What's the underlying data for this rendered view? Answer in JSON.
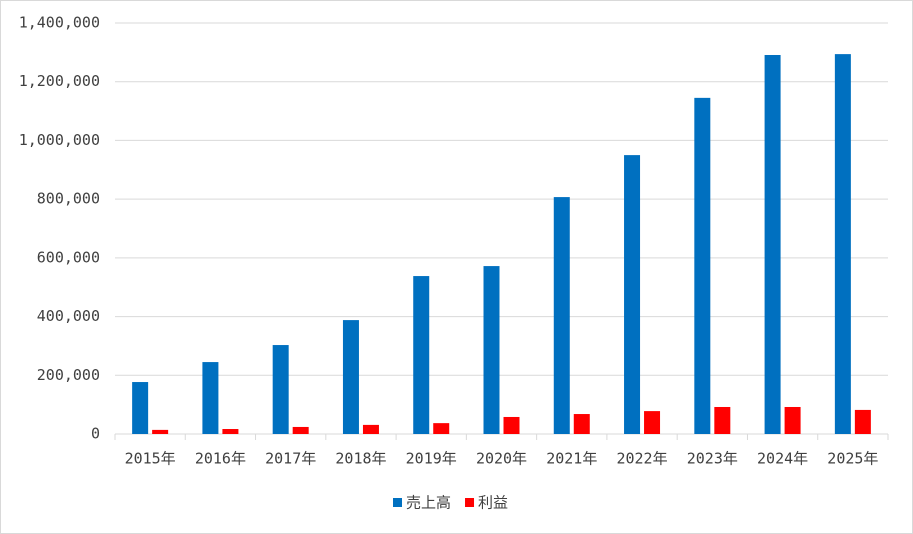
{
  "chart_data": {
    "type": "bar",
    "categories": [
      "2015年",
      "2016年",
      "2017年",
      "2018年",
      "2019年",
      "2020年",
      "2021年",
      "2022年",
      "2023年",
      "2024年",
      "2025年"
    ],
    "series": [
      {
        "name": "売上高",
        "color": "#0070c0",
        "values": [
          177000,
          245000,
          303000,
          388000,
          538000,
          572000,
          807000,
          950000,
          1145000,
          1291000,
          1294000
        ]
      },
      {
        "name": "利益",
        "color": "#ff0000",
        "values": [
          14000,
          17000,
          24000,
          31000,
          37000,
          58000,
          68000,
          78000,
          92000,
          92000,
          82000
        ]
      }
    ],
    "ylim": [
      0,
      1400000
    ],
    "yticks": [
      0,
      {
        "value": 200000,
        "label": "200,000"
      },
      {
        "value": 400000,
        "label": "400,000"
      },
      {
        "value": 600000,
        "label": "600,000"
      },
      {
        "value": 800000,
        "label": "800,000"
      },
      {
        "value": 1000000,
        "label": "1,000,000"
      },
      {
        "value": 1200000,
        "label": "1,200,000"
      },
      {
        "value": 1400000,
        "label": "1,400,000"
      }
    ],
    "grid": true,
    "legend": "bottom"
  }
}
